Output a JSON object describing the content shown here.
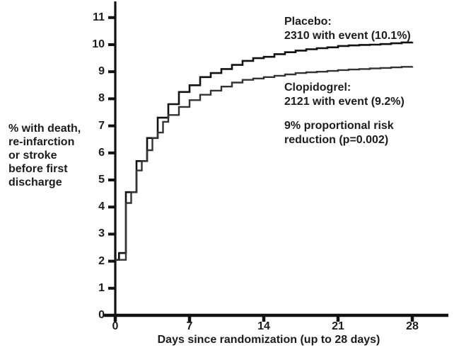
{
  "figure": {
    "background": "#ffffff",
    "text_color": "#1c1c1c",
    "axis_color": "#111111"
  },
  "labels": {
    "y_lines": [
      "% with death,",
      "re-infarction",
      "or stroke",
      "before first",
      "discharge"
    ],
    "x": "Days since randomization (up to 28 days)"
  },
  "ticks": {
    "y": [
      "11",
      "10",
      "9",
      "8",
      "7",
      "6",
      "5",
      "4",
      "3",
      "2",
      "1",
      "0"
    ],
    "x": [
      "0",
      "7",
      "14",
      "21",
      "28"
    ]
  },
  "annotations": {
    "placebo": [
      "Placebo:",
      "2310 with event (10.1%)"
    ],
    "clopidogrel": [
      "Clopidogrel:",
      "2121 with event (9.2%)"
    ],
    "risk": [
      "9% proportional risk",
      "reduction (p=0.002)"
    ]
  },
  "chart_data": {
    "type": "line",
    "subtype": "step-cumulative-incidence",
    "title": "",
    "xlabel": "Days since randomization (up to 28 days)",
    "ylabel": "% with death, re-infarction or stroke before first discharge",
    "xlim": [
      0,
      28
    ],
    "ylim": [
      0,
      11
    ],
    "xticks": [
      0,
      7,
      14,
      21,
      28
    ],
    "yticks": [
      0,
      1,
      2,
      3,
      4,
      5,
      6,
      7,
      8,
      9,
      10,
      11
    ],
    "grid": false,
    "legend_position": "annotated-on-plot",
    "annotation": "9% proportional risk reduction (p=0.002)",
    "series": [
      {
        "name": "Placebo",
        "events": 2310,
        "event_rate_pct": 10.1,
        "color": "#111111",
        "stroke_width": 2.6,
        "points": [
          [
            0,
            2.05
          ],
          [
            0.35,
            2.3
          ],
          [
            1,
            4.55
          ],
          [
            2,
            5.7
          ],
          [
            3,
            6.55
          ],
          [
            4,
            7.3
          ],
          [
            5,
            7.8
          ],
          [
            6,
            8.25
          ],
          [
            7,
            8.5
          ],
          [
            8,
            8.8
          ],
          [
            9,
            8.95
          ],
          [
            10,
            9.1
          ],
          [
            11,
            9.25
          ],
          [
            12,
            9.4
          ],
          [
            13,
            9.5
          ],
          [
            14,
            9.55
          ],
          [
            15,
            9.65
          ],
          [
            16,
            9.72
          ],
          [
            17,
            9.78
          ],
          [
            18,
            9.83
          ],
          [
            19,
            9.87
          ],
          [
            20,
            9.9
          ],
          [
            21,
            9.95
          ],
          [
            22,
            9.97
          ],
          [
            23,
            9.99
          ],
          [
            24,
            10.0
          ],
          [
            25,
            10.02
          ],
          [
            26,
            10.05
          ],
          [
            27,
            10.08
          ],
          [
            28,
            10.1
          ]
        ]
      },
      {
        "name": "Clopidogrel",
        "events": 2121,
        "event_rate_pct": 9.2,
        "color": "#333333",
        "stroke_width": 2.4,
        "points": [
          [
            0,
            2.05
          ],
          [
            1,
            4.15
          ],
          [
            1.5,
            4.55
          ],
          [
            2,
            5.35
          ],
          [
            2.5,
            5.7
          ],
          [
            3,
            6.1
          ],
          [
            3.5,
            6.55
          ],
          [
            4,
            6.75
          ],
          [
            4.5,
            7.15
          ],
          [
            5,
            7.4
          ],
          [
            6,
            7.7
          ],
          [
            7,
            7.95
          ],
          [
            8,
            8.15
          ],
          [
            9,
            8.3
          ],
          [
            10,
            8.45
          ],
          [
            11,
            8.6
          ],
          [
            12,
            8.7
          ],
          [
            13,
            8.75
          ],
          [
            14,
            8.8
          ],
          [
            15,
            8.85
          ],
          [
            16,
            8.9
          ],
          [
            17,
            8.95
          ],
          [
            18,
            8.98
          ],
          [
            19,
            9.0
          ],
          [
            20,
            9.03
          ],
          [
            21,
            9.06
          ],
          [
            22,
            9.08
          ],
          [
            23,
            9.1
          ],
          [
            24,
            9.12
          ],
          [
            25,
            9.14
          ],
          [
            26,
            9.16
          ],
          [
            27,
            9.18
          ],
          [
            28,
            9.2
          ]
        ]
      }
    ]
  }
}
